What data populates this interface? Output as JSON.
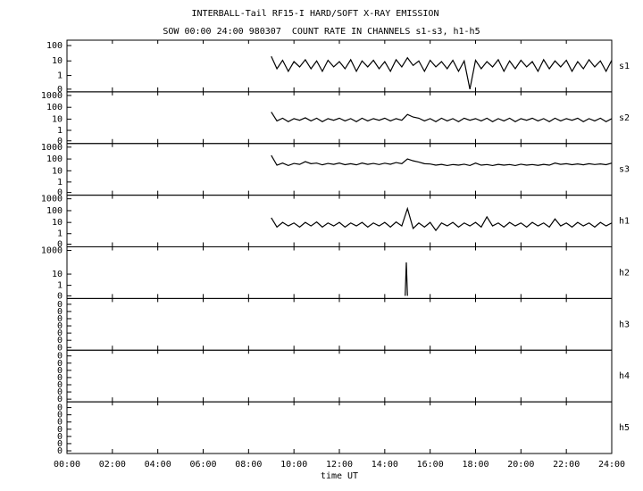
{
  "chart_data": [
    {
      "type": "line",
      "title": "INTERBALL-Tail RF15-I HARD/SOFT X-RAY EMISSION",
      "subtitle": "SOW 00:00 24:00 980307  COUNT RATE IN CHANNELS s1-s3, h1-h5",
      "label": "s1",
      "yscale": "log",
      "color": "#000000",
      "ylim": [
        0,
        150
      ],
      "yticks": [
        100,
        10,
        1,
        0
      ],
      "x": [
        9,
        9.25,
        9.5,
        9.75,
        10,
        10.25,
        10.5,
        10.75,
        11,
        11.25,
        11.5,
        11.75,
        12,
        12.25,
        12.5,
        12.75,
        13,
        13.25,
        13.5,
        13.75,
        14,
        14.25,
        14.5,
        14.75,
        15,
        15.25,
        15.5,
        15.75,
        16,
        16.25,
        16.5,
        16.75,
        17,
        17.25,
        17.5,
        17.75,
        18,
        18.25,
        18.5,
        18.75,
        19,
        19.25,
        19.5,
        19.75,
        20,
        20.25,
        20.5,
        20.75,
        21,
        21.25,
        21.5,
        21.75,
        22,
        22.25,
        22.5,
        22.75,
        23,
        23.25,
        23.5,
        23.75,
        24
      ],
      "values": [
        20,
        3,
        11,
        2,
        9,
        4,
        12,
        3,
        10,
        2,
        11,
        4,
        9,
        3,
        12,
        2,
        10,
        4,
        11,
        3,
        9,
        2,
        12,
        4,
        16,
        5,
        10,
        2,
        11,
        4,
        9,
        3,
        11,
        2,
        10,
        0,
        11,
        3,
        9,
        4,
        12,
        2,
        10,
        3,
        11,
        4,
        9,
        2,
        12,
        3,
        10,
        4,
        11,
        2,
        9,
        3,
        12,
        4,
        10,
        2,
        11
      ]
    },
    {
      "type": "line",
      "label": "s2",
      "yscale": "log",
      "color": "#000000",
      "ylim": [
        0,
        1200
      ],
      "yticks": [
        1000,
        100,
        10,
        1,
        0
      ],
      "x": [
        9,
        9.25,
        9.5,
        9.75,
        10,
        10.25,
        10.5,
        10.75,
        11,
        11.25,
        11.5,
        11.75,
        12,
        12.25,
        12.5,
        12.75,
        13,
        13.25,
        13.5,
        13.75,
        14,
        14.25,
        14.5,
        14.75,
        15,
        15.25,
        15.5,
        15.75,
        16,
        16.25,
        16.5,
        16.75,
        17,
        17.25,
        17.5,
        17.75,
        18,
        18.25,
        18.5,
        18.75,
        19,
        19.25,
        19.5,
        19.75,
        20,
        20.25,
        20.5,
        20.75,
        21,
        21.25,
        21.5,
        21.75,
        22,
        22.25,
        22.5,
        22.75,
        23,
        23.25,
        23.5,
        23.75,
        24
      ],
      "values": [
        40,
        7,
        12,
        6,
        11,
        8,
        13,
        7,
        12,
        6,
        11,
        8,
        12,
        7,
        11,
        6,
        12,
        7,
        11,
        8,
        12,
        7,
        11,
        8,
        25,
        15,
        12,
        7,
        11,
        6,
        12,
        7,
        11,
        6,
        12,
        8,
        11,
        7,
        12,
        6,
        11,
        7,
        12,
        6,
        11,
        8,
        12,
        7,
        11,
        6,
        12,
        7,
        11,
        8,
        12,
        6,
        11,
        7,
        12,
        6,
        11
      ]
    },
    {
      "type": "line",
      "label": "s3",
      "yscale": "log",
      "color": "#000000",
      "ylim": [
        0,
        1200
      ],
      "yticks": [
        1000,
        100,
        10,
        1,
        0
      ],
      "x": [
        9,
        9.25,
        9.5,
        9.75,
        10,
        10.25,
        10.5,
        10.75,
        11,
        11.25,
        11.5,
        11.75,
        12,
        12.25,
        12.5,
        12.75,
        13,
        13.25,
        13.5,
        13.75,
        14,
        14.25,
        14.5,
        14.75,
        15,
        15.25,
        15.5,
        15.75,
        16,
        16.25,
        16.5,
        16.75,
        17,
        17.25,
        17.5,
        17.75,
        18,
        18.25,
        18.5,
        18.75,
        19,
        19.25,
        19.5,
        19.75,
        20,
        20.25,
        20.5,
        20.75,
        21,
        21.25,
        21.5,
        21.75,
        22,
        22.25,
        22.5,
        22.75,
        23,
        23.25,
        23.5,
        23.75,
        24
      ],
      "values": [
        200,
        30,
        45,
        28,
        42,
        35,
        60,
        40,
        45,
        32,
        42,
        35,
        45,
        33,
        40,
        32,
        45,
        35,
        42,
        34,
        44,
        36,
        50,
        40,
        100,
        70,
        55,
        40,
        38,
        30,
        35,
        28,
        34,
        30,
        36,
        28,
        45,
        30,
        34,
        28,
        35,
        30,
        34,
        28,
        36,
        30,
        34,
        29,
        35,
        30,
        45,
        35,
        40,
        33,
        38,
        32,
        40,
        34,
        38,
        33,
        45
      ]
    },
    {
      "type": "line",
      "label": "h1",
      "yscale": "log",
      "color": "#000000",
      "ylim": [
        0,
        1200
      ],
      "yticks": [
        1000,
        100,
        10,
        1,
        0
      ],
      "x": [
        9,
        9.25,
        9.5,
        9.75,
        10,
        10.25,
        10.5,
        10.75,
        11,
        11.25,
        11.5,
        11.75,
        12,
        12.25,
        12.5,
        12.75,
        13,
        13.25,
        13.5,
        13.75,
        14,
        14.25,
        14.5,
        14.75,
        15,
        15.25,
        15.5,
        15.75,
        16,
        16.25,
        16.5,
        16.75,
        17,
        17.25,
        17.5,
        17.75,
        18,
        18.25,
        18.5,
        18.75,
        19,
        19.25,
        19.5,
        19.75,
        20,
        20.25,
        20.5,
        20.75,
        21,
        21.25,
        21.5,
        21.75,
        22,
        22.25,
        22.5,
        22.75,
        23,
        23.25,
        23.5,
        23.75,
        24
      ],
      "values": [
        25,
        4,
        10,
        5,
        9,
        4,
        10,
        5,
        11,
        4,
        9,
        5,
        10,
        4,
        9,
        5,
        10,
        4,
        9,
        5,
        10,
        4,
        11,
        5,
        150,
        3,
        9,
        4,
        10,
        2,
        9,
        5,
        10,
        4,
        9,
        5,
        10,
        4,
        30,
        5,
        9,
        4,
        10,
        5,
        9,
        4,
        10,
        5,
        9,
        4,
        20,
        5,
        9,
        4,
        10,
        5,
        9,
        4,
        10,
        5,
        9
      ]
    },
    {
      "type": "line",
      "label": "h2",
      "yscale": "log",
      "color": "#000000",
      "ylim": [
        0,
        1200
      ],
      "yticks": [
        1000,
        10,
        1,
        0
      ],
      "x": [
        14.9,
        14.95,
        15
      ],
      "values": [
        0,
        100,
        0
      ]
    },
    {
      "type": "line",
      "label": "h3",
      "yscale": "linear",
      "ylim": [
        0,
        0.45
      ],
      "yticks": [
        {
          "value": 0,
          "label": "0"
        },
        {
          "value": 0.07,
          "label": "0"
        },
        {
          "value": 0.14,
          "label": "0"
        },
        {
          "value": 0.21,
          "label": "0"
        },
        {
          "value": 0.28,
          "label": "0"
        },
        {
          "value": 0.35,
          "label": "0"
        },
        {
          "value": 0.42,
          "label": "0"
        }
      ]
    },
    {
      "type": "line",
      "label": "h4",
      "yscale": "linear",
      "ylim": [
        0,
        0.45
      ],
      "yticks": [
        {
          "value": 0,
          "label": "0"
        },
        {
          "value": 0.07,
          "label": "0"
        },
        {
          "value": 0.14,
          "label": "0"
        },
        {
          "value": 0.21,
          "label": "0"
        },
        {
          "value": 0.28,
          "label": "0"
        },
        {
          "value": 0.35,
          "label": "0"
        },
        {
          "value": 0.42,
          "label": "0"
        }
      ]
    },
    {
      "type": "line",
      "label": "h5",
      "yscale": "linear",
      "ylim": [
        0,
        0.45
      ],
      "yticks": [
        {
          "value": 0,
          "label": "0"
        },
        {
          "value": 0.07,
          "label": "0"
        },
        {
          "value": 0.14,
          "label": "0"
        },
        {
          "value": 0.21,
          "label": "0"
        },
        {
          "value": 0.28,
          "label": "0"
        },
        {
          "value": 0.35,
          "label": "0"
        },
        {
          "value": 0.42,
          "label": "0"
        }
      ],
      "xlabel": "time UT",
      "xlim": [
        0,
        24
      ],
      "xticks": [
        {
          "value": 0,
          "label": "00:00"
        },
        {
          "value": 2,
          "label": "02:00"
        },
        {
          "value": 4,
          "label": "04:00"
        },
        {
          "value": 6,
          "label": "06:00"
        },
        {
          "value": 8,
          "label": "08:00"
        },
        {
          "value": 10,
          "label": "10:00"
        },
        {
          "value": 12,
          "label": "12:00"
        },
        {
          "value": 14,
          "label": "14:00"
        },
        {
          "value": 16,
          "label": "16:00"
        },
        {
          "value": 18,
          "label": "18:00"
        },
        {
          "value": 20,
          "label": "20:00"
        },
        {
          "value": 22,
          "label": "22:00"
        },
        {
          "value": 24,
          "label": "24:00"
        }
      ]
    }
  ]
}
